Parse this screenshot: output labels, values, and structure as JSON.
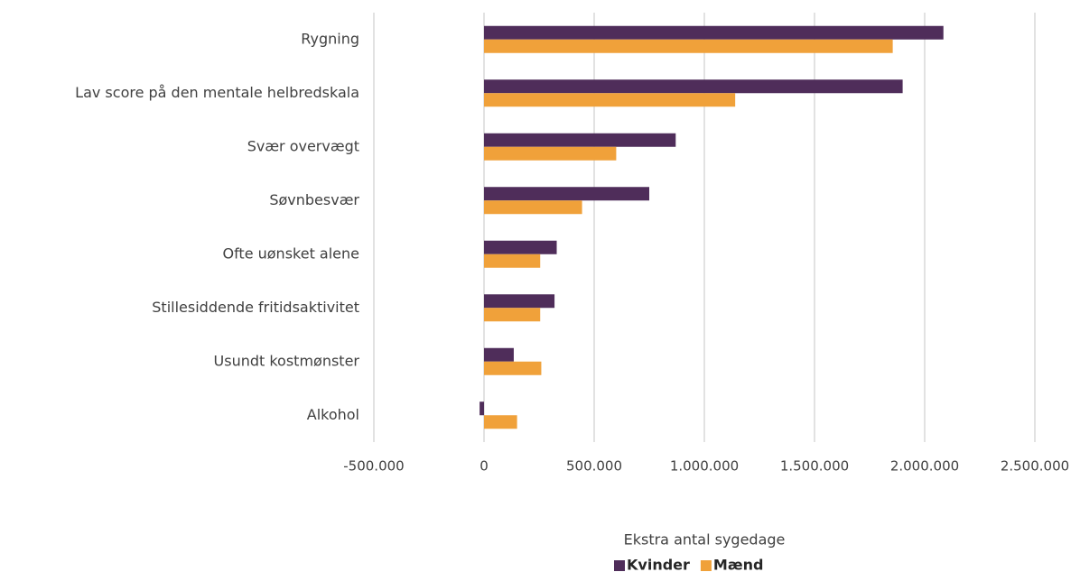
{
  "chart_data": {
    "type": "hbar",
    "categories": [
      "Rygning",
      "Lav score på den mentale helbredskala",
      "Svær overvægt",
      "Søvnbesvær",
      "Ofte uønsket alene",
      "Stillesiddende fritidsaktivitet",
      "Usundt kostmønster",
      "Alkohol"
    ],
    "series": [
      {
        "name": "Kvinder",
        "color": "#4f2d5a",
        "values": [
          2085000,
          1900000,
          870000,
          750000,
          330000,
          320000,
          135000,
          -20000
        ]
      },
      {
        "name": "Mænd",
        "color": "#f0a13a",
        "values": [
          1855000,
          1140000,
          600000,
          445000,
          255000,
          255000,
          260000,
          150000
        ]
      }
    ],
    "x_label": "Ekstra antal sygedage",
    "xlim": [
      -500000,
      2500000
    ],
    "xticks": [
      {
        "value": -500000,
        "label": "-500.000"
      },
      0,
      {
        "value": 500000,
        "label": "500.000"
      },
      {
        "value": 1000000,
        "label": "1.000.000"
      },
      {
        "value": 1500000,
        "label": "1.500.000"
      },
      {
        "value": 2000000,
        "label": "2.000.000"
      },
      {
        "value": 2500000,
        "label": "2.500.000"
      }
    ],
    "grid": true,
    "legend": "bottom"
  }
}
